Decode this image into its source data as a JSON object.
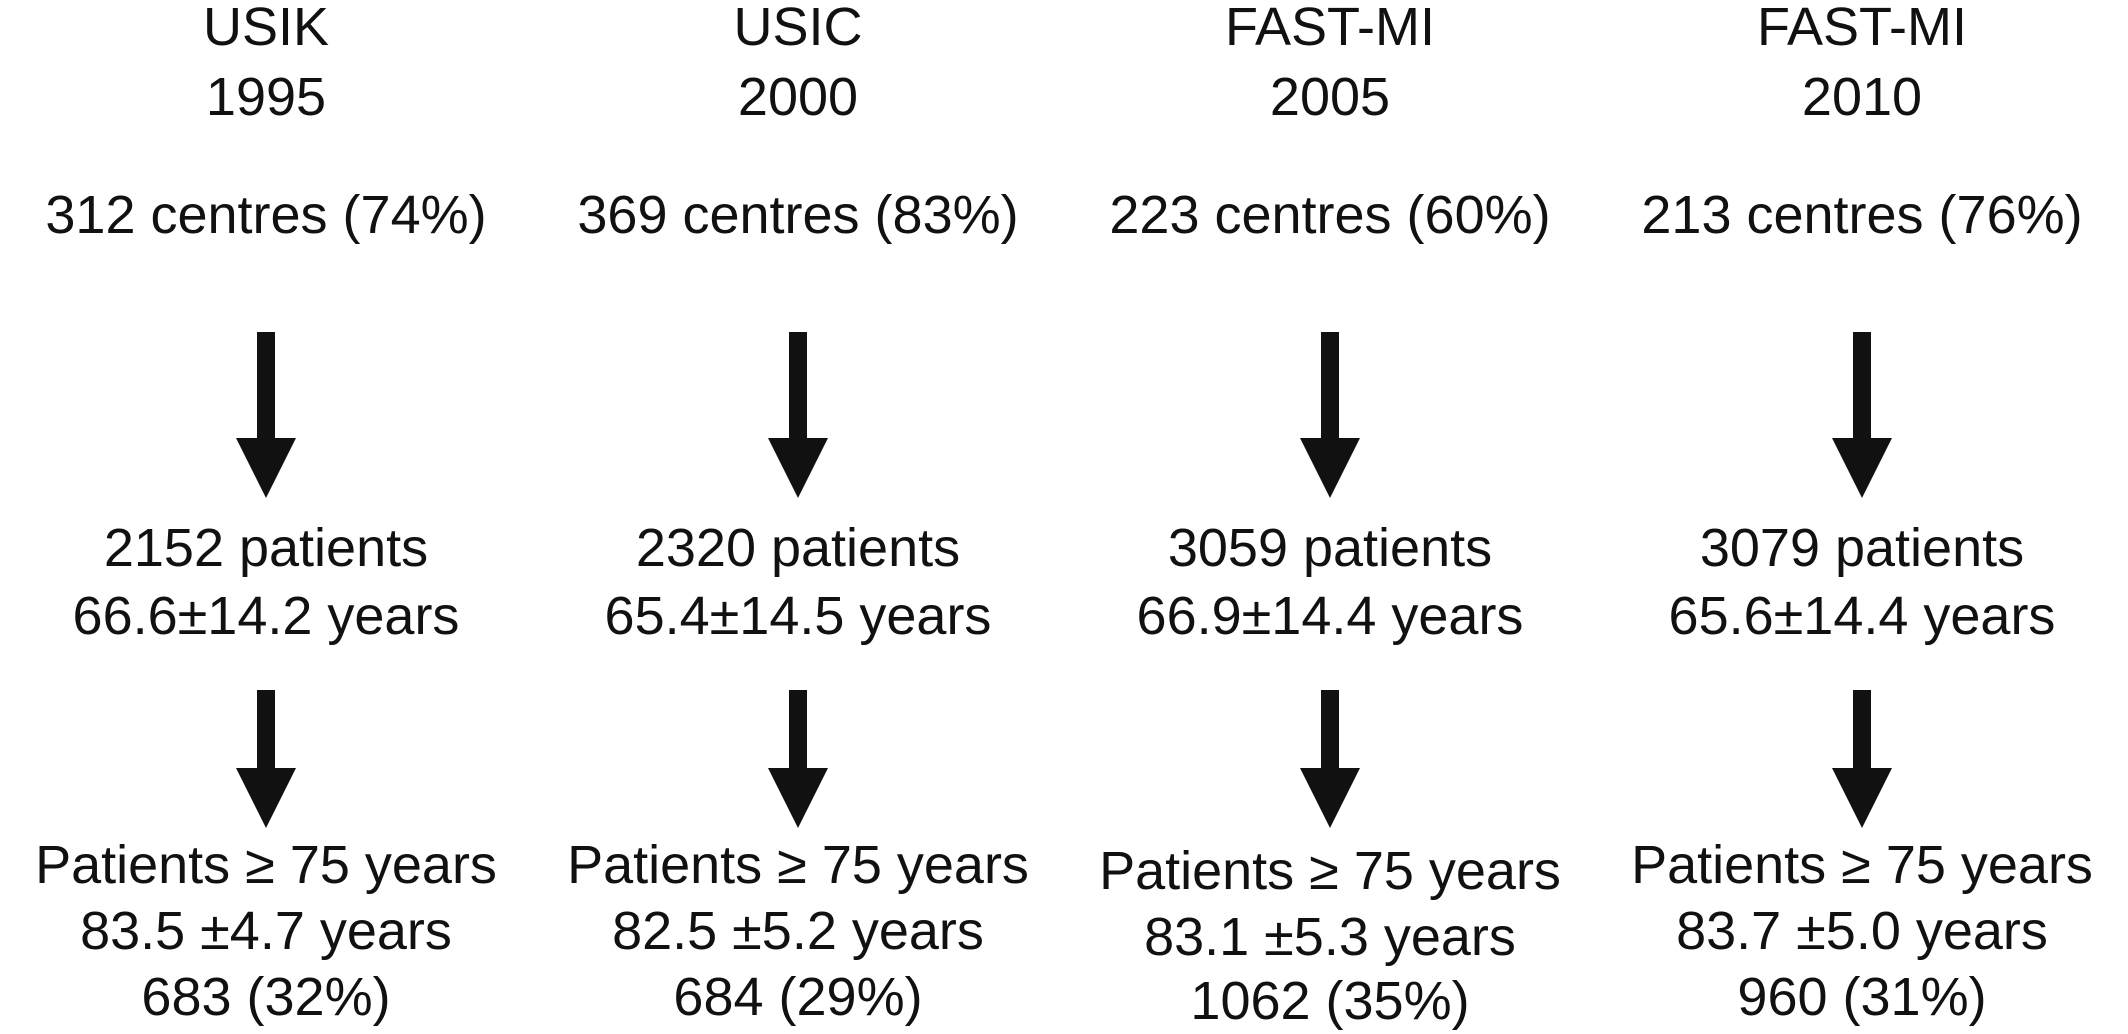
{
  "studies": [
    {
      "name": "USIK",
      "year": "1995",
      "centres": "312 centres (74%)",
      "patients": "2152 patients",
      "age": "66.6±14.2 years",
      "elderly_label": "Patients ≥ 75 years",
      "elderly_age": "83.5 ±4.7 years",
      "elderly_count": "683 (32%)"
    },
    {
      "name": "USIC",
      "year": "2000",
      "centres": "369 centres (83%)",
      "patients": "2320 patients",
      "age": "65.4±14.5 years",
      "elderly_label": "Patients ≥ 75 years",
      "elderly_age": "82.5 ±5.2 years",
      "elderly_count": "684 (29%)"
    },
    {
      "name": "FAST-MI",
      "year": "2005",
      "centres": "223 centres (60%)",
      "patients": "3059 patients",
      "age": "66.9±14.4 years",
      "elderly_label": "Patients ≥ 75 years",
      "elderly_age": "83.1 ±5.3 years",
      "elderly_count": "1062 (35%)"
    },
    {
      "name": "FAST-MI",
      "year": "2010",
      "centres": "213 centres (76%)",
      "patients": "3079 patients",
      "age": "65.6±14.4 years",
      "elderly_label": "Patients ≥ 75 years",
      "elderly_age": "83.7 ±5.0 years",
      "elderly_count": "960 (31%)"
    }
  ],
  "colors": {
    "text": "#111111",
    "arrow": "#111111",
    "background": "#ffffff"
  }
}
